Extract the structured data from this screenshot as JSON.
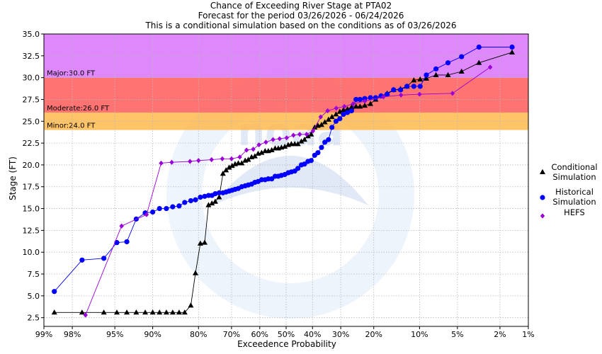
{
  "chart_data": {
    "type": "line",
    "title": [
      "Chance of Exceeding River Stage at PTA02",
      "Forecast for the period 03/26/2026 - 06/24/2026",
      "This is a conditional simulation based on the conditions as of 03/26/2026"
    ],
    "xlabel": "Exceedence Probability",
    "ylabel": "Stage (FT)",
    "x_scale": "normal-probability",
    "x_ticks": [
      99,
      98,
      95,
      90,
      80,
      70,
      60,
      50,
      40,
      30,
      20,
      10,
      5,
      2,
      1
    ],
    "x_tick_labels": [
      "99%",
      "98%",
      "95%",
      "90%",
      "80%",
      "70%",
      "60%",
      "50%",
      "40%",
      "30%",
      "20%",
      "10%",
      "5%",
      "2%",
      "1%"
    ],
    "ylim": [
      1.5,
      35
    ],
    "y_ticks": [
      2.5,
      5,
      7.5,
      10,
      12.5,
      15,
      17.5,
      20,
      22.5,
      25,
      27.5,
      30,
      32.5,
      35
    ],
    "y_tick_labels": [
      "2.5",
      "5.0",
      "7.5",
      "10.0",
      "12.5",
      "15.0",
      "17.5",
      "20.0",
      "22.5",
      "25.0",
      "27.5",
      "30.0",
      "32.5",
      "35.0"
    ],
    "flood_bands": [
      {
        "label": "Minor:24.0 FT",
        "from": 24,
        "to": 26,
        "color": "#ffb84d"
      },
      {
        "label": "Moderate:26.0 FT",
        "from": 26,
        "to": 30,
        "color": "#ff5a5a"
      },
      {
        "label": "Major:30.0 FT",
        "from": 30,
        "to": 35,
        "color": "#d873fa"
      }
    ],
    "series": [
      {
        "name": "Conditional Simulation",
        "legend": [
          "Conditional",
          "Simulation"
        ],
        "marker": "triangle",
        "color": "#000000",
        "points": [
          [
            98.7,
            3.1
          ],
          [
            97.5,
            3.1
          ],
          [
            96.0,
            3.1
          ],
          [
            94.8,
            3.1
          ],
          [
            93.7,
            3.1
          ],
          [
            92.5,
            3.1
          ],
          [
            91.2,
            3.1
          ],
          [
            90.0,
            3.1
          ],
          [
            88.8,
            3.1
          ],
          [
            87.5,
            3.1
          ],
          [
            86.2,
            3.1
          ],
          [
            84.8,
            3.1
          ],
          [
            83.5,
            3.1
          ],
          [
            82.0,
            3.9
          ],
          [
            80.8,
            7.6
          ],
          [
            79.5,
            11.0
          ],
          [
            78.3,
            11.1
          ],
          [
            77.2,
            15.4
          ],
          [
            76.2,
            15.6
          ],
          [
            75.2,
            15.8
          ],
          [
            74.0,
            16.3
          ],
          [
            72.8,
            19.0
          ],
          [
            71.8,
            19.4
          ],
          [
            70.8,
            19.7
          ],
          [
            69.8,
            19.9
          ],
          [
            68.8,
            20.1
          ],
          [
            67.7,
            20.2
          ],
          [
            66.5,
            20.2
          ],
          [
            65.3,
            20.5
          ],
          [
            64.2,
            20.6
          ],
          [
            63.0,
            20.9
          ],
          [
            61.8,
            21.0
          ],
          [
            60.6,
            21.3
          ],
          [
            59.3,
            21.4
          ],
          [
            58.0,
            21.6
          ],
          [
            56.8,
            21.6
          ],
          [
            55.5,
            21.7
          ],
          [
            54.2,
            21.9
          ],
          [
            53.0,
            21.9
          ],
          [
            51.8,
            22.0
          ],
          [
            50.5,
            22.1
          ],
          [
            49.2,
            22.3
          ],
          [
            48.0,
            22.4
          ],
          [
            46.7,
            22.4
          ],
          [
            45.5,
            22.4
          ],
          [
            44.2,
            22.7
          ],
          [
            43.0,
            22.9
          ],
          [
            41.7,
            23.3
          ],
          [
            40.5,
            23.5
          ],
          [
            39.2,
            24.3
          ],
          [
            38.0,
            24.5
          ],
          [
            36.7,
            24.6
          ],
          [
            35.5,
            24.9
          ],
          [
            34.2,
            25.2
          ],
          [
            33.0,
            25.5
          ],
          [
            31.6,
            25.8
          ],
          [
            30.3,
            26.1
          ],
          [
            29.1,
            26.3
          ],
          [
            27.8,
            26.4
          ],
          [
            26.5,
            26.6
          ],
          [
            25.1,
            26.7
          ],
          [
            23.9,
            26.7
          ],
          [
            22.5,
            26.8
          ],
          [
            20.9,
            27.0
          ],
          [
            19.5,
            27.5
          ],
          [
            18.1,
            27.9
          ],
          [
            16.6,
            28.2
          ],
          [
            15.1,
            28.6
          ],
          [
            13.6,
            28.7
          ],
          [
            12.3,
            29.0
          ],
          [
            11.0,
            29.7
          ],
          [
            9.9,
            29.8
          ],
          [
            8.9,
            29.9
          ],
          [
            7.5,
            30.3
          ],
          [
            6.0,
            30.3
          ],
          [
            4.6,
            30.7
          ],
          [
            3.2,
            31.7
          ],
          [
            1.5,
            32.9
          ]
        ]
      },
      {
        "name": "Historical Simulation",
        "legend": [
          "Historical",
          "Simulation"
        ],
        "marker": "circle",
        "color": "#0000ff",
        "points": [
          [
            98.7,
            5.5
          ],
          [
            97.5,
            9.1
          ],
          [
            96.0,
            9.3
          ],
          [
            94.8,
            11.1
          ],
          [
            93.7,
            11.2
          ],
          [
            92.5,
            13.8
          ],
          [
            91.2,
            14.5
          ],
          [
            90.0,
            14.6
          ],
          [
            88.8,
            15.0
          ],
          [
            87.5,
            15.0
          ],
          [
            86.2,
            15.2
          ],
          [
            84.8,
            15.3
          ],
          [
            83.5,
            15.7
          ],
          [
            82.0,
            15.9
          ],
          [
            80.8,
            16.0
          ],
          [
            79.5,
            16.3
          ],
          [
            78.3,
            16.4
          ],
          [
            77.2,
            16.5
          ],
          [
            76.2,
            16.5
          ],
          [
            75.2,
            16.7
          ],
          [
            74.0,
            16.8
          ],
          [
            72.8,
            16.8
          ],
          [
            71.8,
            16.9
          ],
          [
            70.8,
            17.0
          ],
          [
            69.8,
            17.1
          ],
          [
            68.8,
            17.2
          ],
          [
            67.7,
            17.3
          ],
          [
            66.5,
            17.5
          ],
          [
            65.3,
            17.6
          ],
          [
            64.2,
            17.7
          ],
          [
            63.0,
            17.8
          ],
          [
            61.8,
            18.0
          ],
          [
            60.6,
            18.1
          ],
          [
            59.3,
            18.3
          ],
          [
            58.0,
            18.3
          ],
          [
            56.8,
            18.4
          ],
          [
            55.5,
            18.4
          ],
          [
            54.2,
            18.7
          ],
          [
            53.0,
            18.7
          ],
          [
            51.8,
            18.8
          ],
          [
            50.5,
            18.9
          ],
          [
            49.2,
            19.1
          ],
          [
            48.0,
            19.2
          ],
          [
            46.7,
            19.3
          ],
          [
            45.5,
            19.6
          ],
          [
            44.2,
            20.0
          ],
          [
            43.0,
            20.1
          ],
          [
            41.7,
            20.4
          ],
          [
            40.5,
            20.5
          ],
          [
            39.2,
            21.1
          ],
          [
            38.0,
            21.4
          ],
          [
            36.7,
            22.0
          ],
          [
            35.5,
            22.6
          ],
          [
            34.2,
            22.9
          ],
          [
            33.0,
            24.3
          ],
          [
            31.6,
            25.0
          ],
          [
            30.3,
            25.3
          ],
          [
            29.1,
            25.8
          ],
          [
            27.8,
            26.0
          ],
          [
            26.5,
            26.2
          ],
          [
            25.1,
            27.5
          ],
          [
            23.9,
            27.5
          ],
          [
            22.5,
            27.6
          ],
          [
            20.9,
            27.7
          ],
          [
            19.5,
            27.7
          ],
          [
            18.1,
            27.9
          ],
          [
            16.6,
            28.1
          ],
          [
            15.1,
            28.6
          ],
          [
            13.6,
            28.6
          ],
          [
            12.3,
            29.0
          ],
          [
            11.0,
            29.0
          ],
          [
            9.9,
            29.0
          ],
          [
            8.9,
            30.3
          ],
          [
            7.5,
            31.0
          ],
          [
            6.0,
            31.7
          ],
          [
            4.6,
            32.4
          ],
          [
            3.2,
            33.5
          ],
          [
            1.5,
            33.5
          ]
        ]
      },
      {
        "name": "HEFS",
        "legend": [
          "HEFS"
        ],
        "marker": "diamond",
        "color": "#9a00d8",
        "points": [
          [
            97.3,
            2.8
          ],
          [
            94.3,
            13.0
          ],
          [
            91.0,
            14.3
          ],
          [
            88.5,
            20.2
          ],
          [
            86.4,
            20.3
          ],
          [
            82.2,
            20.4
          ],
          [
            80.0,
            20.5
          ],
          [
            76.3,
            20.6
          ],
          [
            73.0,
            20.7
          ],
          [
            70.0,
            20.7
          ],
          [
            67.2,
            20.9
          ],
          [
            64.8,
            21.7
          ],
          [
            62.4,
            21.8
          ],
          [
            60.3,
            22.3
          ],
          [
            57.7,
            22.6
          ],
          [
            55.0,
            22.9
          ],
          [
            52.5,
            23.0
          ],
          [
            49.8,
            23.1
          ],
          [
            47.2,
            23.4
          ],
          [
            44.8,
            23.5
          ],
          [
            42.2,
            23.5
          ],
          [
            39.8,
            23.9
          ],
          [
            37.0,
            25.5
          ],
          [
            34.5,
            26.2
          ],
          [
            31.5,
            26.5
          ],
          [
            28.8,
            26.7
          ],
          [
            26.0,
            27.0
          ],
          [
            22.5,
            27.3
          ],
          [
            17.5,
            27.8
          ],
          [
            13.5,
            28.0
          ],
          [
            10.0,
            28.1
          ],
          [
            5.5,
            28.2
          ],
          [
            2.5,
            31.2
          ]
        ]
      }
    ]
  }
}
